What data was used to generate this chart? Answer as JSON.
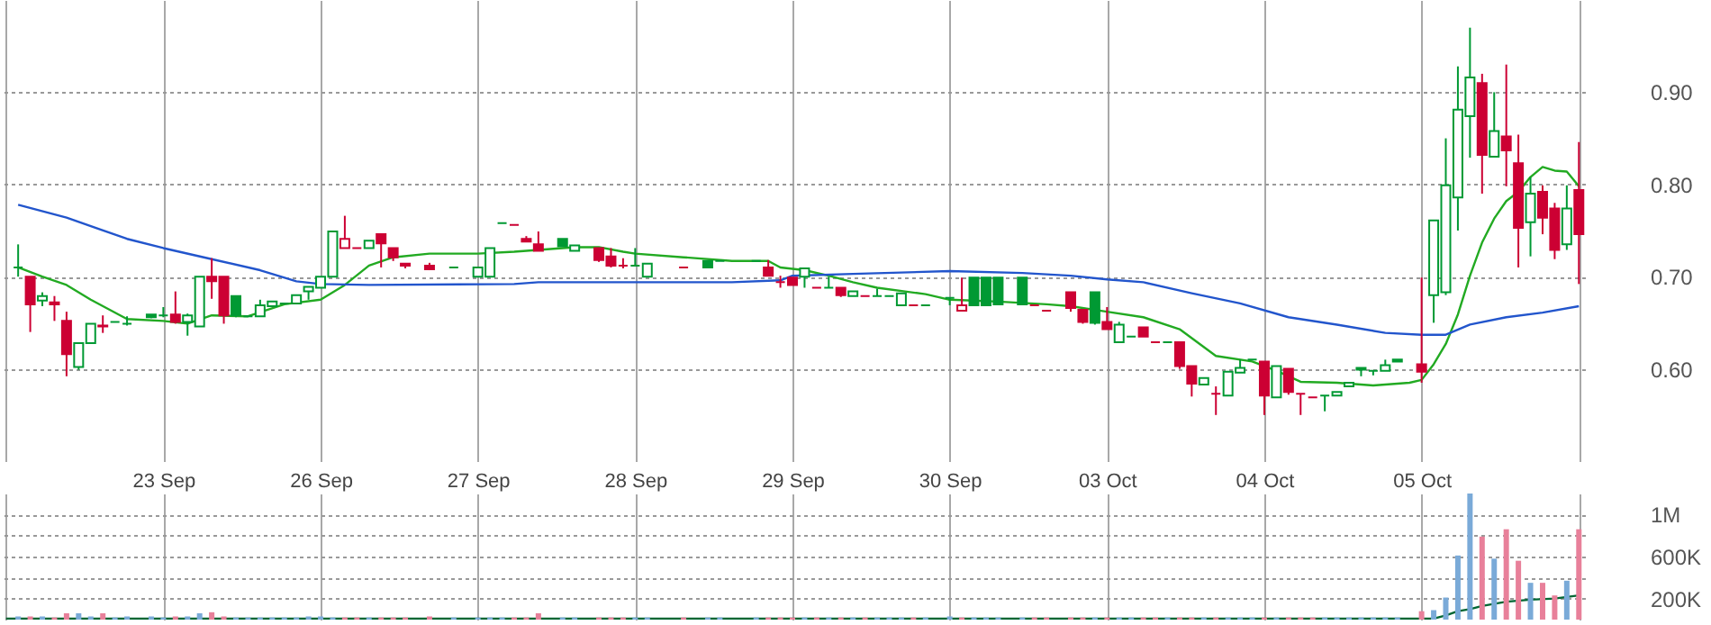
{
  "chart_data": [
    {
      "type": "candlestick",
      "categories": [
        null,
        null,
        null,
        null,
        null,
        null,
        null,
        null,
        null,
        null,
        null,
        null,
        null,
        "23 Sep",
        null,
        null,
        null,
        null,
        null,
        null,
        null,
        null,
        null,
        null,
        null,
        null,
        "26 Sep",
        null,
        null,
        null,
        null,
        null,
        null,
        null,
        null,
        null,
        null,
        null,
        null,
        "27 Sep",
        null,
        null,
        null,
        null,
        null,
        null,
        null,
        null,
        null,
        null,
        null,
        null,
        "28 Sep",
        null,
        null,
        null,
        null,
        null,
        null,
        null,
        null,
        null,
        null,
        null,
        null,
        "29 Sep",
        null,
        null,
        null,
        null,
        null,
        null,
        null,
        null,
        null,
        null,
        null,
        null,
        "30 Sep",
        null,
        null,
        null,
        null,
        null,
        null,
        null,
        null,
        null,
        null,
        null,
        null,
        "03 Oct",
        null,
        null,
        null,
        null,
        null,
        null,
        null,
        null,
        null,
        null,
        null,
        null,
        "04 Oct",
        null,
        null,
        null,
        null,
        null,
        null,
        null,
        null,
        null,
        null,
        null,
        null,
        "05 Oct",
        null,
        null,
        null,
        null,
        null,
        null,
        null,
        null,
        null,
        null,
        null,
        null,
        null
      ],
      "ohlc": [
        null,
        [
          0.71,
          0.735,
          0.7,
          0.71
        ],
        [
          0.7,
          0.7,
          0.64,
          0.67
        ],
        [
          0.674,
          0.683,
          0.668,
          0.679
        ],
        [
          0.672,
          0.679,
          0.652,
          0.67
        ],
        [
          0.652,
          0.662,
          0.592,
          0.616
        ],
        [
          0.602,
          0.628,
          0.599,
          0.628
        ],
        [
          0.628,
          0.649,
          0.628,
          0.649
        ],
        [
          0.647,
          0.658,
          0.639,
          0.646
        ],
        [
          0.651,
          0.651,
          0.651,
          0.651
        ],
        [
          0.649,
          0.657,
          0.647,
          0.649
        ],
        null,
        [
          0.659,
          0.659,
          0.655,
          0.656
        ],
        [
          0.658,
          0.667,
          0.656,
          0.658
        ],
        [
          0.659,
          0.684,
          0.649,
          0.651
        ],
        [
          0.651,
          0.66,
          0.636,
          0.658
        ],
        [
          0.646,
          0.7,
          0.646,
          0.7
        ],
        [
          0.7,
          0.72,
          0.676,
          0.695
        ],
        [
          0.7,
          0.7,
          0.649,
          0.658
        ],
        [
          0.679,
          0.679,
          0.656,
          0.658
        ],
        [
          0.657,
          0.657,
          0.657,
          0.657
        ],
        [
          0.657,
          0.675,
          0.657,
          0.669
        ],
        [
          0.668,
          0.673,
          0.668,
          0.673
        ],
        [
          0.671,
          0.671,
          0.671,
          0.671
        ],
        [
          0.671,
          0.68,
          0.671,
          0.68
        ],
        [
          0.684,
          0.689,
          0.675,
          0.689
        ],
        [
          0.688,
          0.7,
          0.688,
          0.7
        ],
        [
          0.7,
          0.749,
          0.7,
          0.749
        ],
        [
          0.731,
          0.766,
          0.731,
          0.741
        ],
        [
          0.731,
          0.731,
          0.731,
          0.731
        ],
        [
          0.731,
          0.739,
          0.731,
          0.739
        ],
        [
          0.746,
          0.746,
          0.71,
          0.736
        ],
        [
          0.731,
          0.731,
          0.717,
          0.721
        ],
        [
          0.714,
          0.714,
          0.709,
          0.712
        ],
        null,
        [
          0.712,
          0.715,
          0.707,
          0.708
        ],
        null,
        [
          0.71,
          0.71,
          0.71,
          0.71
        ],
        null,
        [
          0.7,
          0.71,
          0.7,
          0.71
        ],
        [
          0.7,
          0.731,
          0.7,
          0.731
        ],
        [
          0.758,
          0.758,
          0.758,
          0.758
        ],
        [
          0.756,
          0.756,
          0.756,
          0.756
        ],
        [
          0.741,
          0.744,
          0.738,
          0.738
        ],
        [
          0.735,
          0.749,
          0.728,
          0.728
        ],
        null,
        [
          0.741,
          0.741,
          0.733,
          0.733
        ],
        [
          0.728,
          0.734,
          0.728,
          0.734
        ],
        null,
        [
          0.731,
          0.731,
          0.716,
          0.718
        ],
        [
          0.722,
          0.731,
          0.71,
          0.712
        ],
        [
          0.712,
          0.72,
          0.709,
          0.712
        ],
        [
          0.712,
          0.731,
          0.712,
          0.712
        ],
        [
          0.7,
          0.714,
          0.7,
          0.714
        ],
        null,
        null,
        [
          0.71,
          0.71,
          0.71,
          0.71
        ],
        null,
        [
          0.717,
          0.717,
          0.71,
          0.71
        ],
        [
          0.717,
          0.717,
          0.717,
          0.717
        ],
        null,
        null,
        [
          0.717,
          0.717,
          0.717,
          0.717
        ],
        [
          0.71,
          0.718,
          0.701,
          0.701
        ],
        [
          0.694,
          0.701,
          0.688,
          0.694
        ],
        [
          0.699,
          0.699,
          0.691,
          0.691
        ],
        [
          0.7,
          0.709,
          0.688,
          0.709
        ],
        [
          0.688,
          0.688,
          0.688,
          0.688
        ],
        [
          0.688,
          0.7,
          0.688,
          0.688
        ],
        [
          0.688,
          0.688,
          0.678,
          0.68
        ],
        [
          0.679,
          0.684,
          0.679,
          0.684
        ],
        [
          0.679,
          0.679,
          0.679,
          0.679
        ],
        [
          0.679,
          0.687,
          0.679,
          0.679
        ],
        [
          0.679,
          0.679,
          0.679,
          0.679
        ],
        [
          0.669,
          0.682,
          0.669,
          0.682
        ],
        [
          0.669,
          0.669,
          0.669,
          0.669
        ],
        [
          0.669,
          0.669,
          0.669,
          0.669
        ],
        null,
        [
          0.677,
          0.677,
          0.669,
          0.677
        ],
        [
          0.663,
          0.699,
          0.663,
          0.669
        ],
        [
          0.699,
          0.699,
          0.668,
          0.669
        ],
        [
          0.699,
          0.699,
          0.669,
          0.669
        ],
        [
          0.699,
          0.699,
          0.67,
          0.67
        ],
        null,
        [
          0.699,
          0.699,
          0.67,
          0.67
        ],
        [
          0.669,
          0.669,
          0.669,
          0.669
        ],
        [
          0.663,
          0.663,
          0.663,
          0.663
        ],
        null,
        [
          0.683,
          0.683,
          0.662,
          0.666
        ],
        [
          0.664,
          0.664,
          0.649,
          0.651
        ],
        [
          0.683,
          0.683,
          0.648,
          0.65
        ],
        [
          0.651,
          0.667,
          0.643,
          0.643
        ],
        [
          0.629,
          0.651,
          0.629,
          0.648
        ],
        [
          0.635,
          0.635,
          0.635,
          0.635
        ],
        [
          0.645,
          0.645,
          0.635,
          0.635
        ],
        [
          0.629,
          0.629,
          0.629,
          0.629
        ],
        [
          0.629,
          0.629,
          0.629,
          0.629
        ],
        [
          0.629,
          0.629,
          0.6,
          0.603
        ],
        [
          0.603,
          0.603,
          0.57,
          0.584
        ],
        [
          0.583,
          0.59,
          0.583,
          0.59
        ],
        [
          0.573,
          0.581,
          0.55,
          0.573
        ],
        [
          0.571,
          0.597,
          0.571,
          0.597
        ],
        [
          0.596,
          0.61,
          0.596,
          0.601
        ],
        [
          0.61,
          0.61,
          0.61,
          0.61
        ],
        [
          0.608,
          0.608,
          0.55,
          0.571
        ],
        [
          0.569,
          0.603,
          0.569,
          0.603
        ],
        [
          0.6,
          0.6,
          0.572,
          0.575
        ],
        [
          0.573,
          0.573,
          0.55,
          0.573
        ],
        [
          0.569,
          0.569,
          0.569,
          0.569
        ],
        [
          0.571,
          0.571,
          0.554,
          0.571
        ],
        [
          0.571,
          0.575,
          0.571,
          0.575
        ],
        [
          0.581,
          0.585,
          0.581,
          0.585
        ],
        [
          0.601,
          0.601,
          0.592,
          0.599
        ],
        [
          0.598,
          0.598,
          0.593,
          0.598
        ],
        [
          0.598,
          0.61,
          0.598,
          0.604
        ],
        [
          0.61,
          0.61,
          0.608,
          0.608
        ],
        null,
        [
          0.605,
          0.699,
          0.585,
          0.597
        ],
        [
          0.68,
          0.761,
          0.65,
          0.761
        ],
        [
          0.683,
          0.85,
          0.68,
          0.799
        ],
        [
          0.786,
          0.928,
          0.75,
          0.881
        ],
        [
          0.874,
          0.97,
          0.829,
          0.916
        ],
        [
          0.91,
          0.92,
          0.79,
          0.832
        ],
        [
          0.83,
          0.9,
          0.83,
          0.858
        ],
        [
          0.852,
          0.93,
          0.798,
          0.837
        ],
        [
          0.823,
          0.854,
          0.71,
          0.753
        ],
        [
          0.759,
          0.808,
          0.722,
          0.79
        ],
        [
          0.792,
          0.799,
          0.746,
          0.764
        ],
        [
          0.774,
          0.78,
          0.719,
          0.729
        ],
        [
          0.735,
          0.799,
          0.729,
          0.774
        ],
        [
          0.794,
          0.846,
          0.692,
          0.746
        ]
      ],
      "colors": [
        null,
        "#009933",
        "#cc0033",
        "#009933",
        "#cc0033",
        "#cc0033",
        "#009933",
        "#009933",
        "#cc0033",
        "#009933",
        "#009933",
        null,
        "#009933",
        "#009933",
        "#cc0033",
        "#009933",
        "#009933",
        "#cc0033",
        "#cc0033",
        "#009933",
        "#009933",
        "#009933",
        "#009933",
        "#009933",
        "#009933",
        "#009933",
        "#009933",
        "#009933",
        "#cc0033",
        "#cc0033",
        "#009933",
        "#cc0033",
        "#cc0033",
        "#cc0033",
        null,
        "#cc0033",
        null,
        "#009933",
        null,
        "#009933",
        "#009933",
        "#009933",
        "#cc0033",
        "#cc0033",
        "#cc0033",
        null,
        "#009933",
        "#009933",
        null,
        "#cc0033",
        "#cc0033",
        "#cc0033",
        "#009933",
        "#009933",
        null,
        null,
        "#cc0033",
        null,
        "#009933",
        "#009933",
        null,
        null,
        "#009933",
        "#cc0033",
        "#cc0033",
        "#cc0033",
        "#009933",
        "#cc0033",
        "#009933",
        "#cc0033",
        "#009933",
        "#cc0033",
        "#009933",
        "#009933",
        "#009933",
        "#cc0033",
        "#009933",
        null,
        "#009933",
        "#cc0033",
        "#009933",
        "#009933",
        "#009933",
        null,
        "#009933",
        "#cc0033",
        "#cc0033",
        null,
        "#cc0033",
        "#cc0033",
        "#009933",
        "#cc0033",
        "#009933",
        "#009933",
        "#cc0033",
        "#cc0033",
        "#009933",
        "#cc0033",
        "#cc0033",
        "#009933",
        "#cc0033",
        "#009933",
        "#009933",
        "#009933",
        "#cc0033",
        "#009933",
        "#cc0033",
        "#cc0033",
        "#cc0033",
        "#009933",
        "#009933",
        "#009933",
        "#009933",
        "#009933",
        "#009933",
        "#009933",
        null,
        "#cc0033",
        "#009933",
        "#009933",
        "#009933",
        "#009933",
        "#cc0033",
        "#009933",
        "#cc0033",
        "#cc0033",
        "#009933",
        "#cc0033",
        "#cc0033",
        "#009933",
        "#cc0033"
      ],
      "series": [
        {
          "type": "line",
          "color": "#22aa22",
          "values": [
            null,
            0.71,
            null,
            0.7,
            null,
            0.691,
            null,
            0.675,
            null,
            null,
            0.654,
            null,
            null,
            0.652,
            null,
            0.649,
            null,
            0.658,
            null,
            null,
            0.657,
            null,
            null,
            0.67,
            null,
            null,
            0.675,
            null,
            0.691,
            null,
            0.712,
            null,
            0.721,
            null,
            null,
            0.725,
            null,
            null,
            null,
            0.725,
            null,
            null,
            0.727,
            null,
            null,
            0.73,
            null,
            0.732,
            null,
            0.732,
            null,
            0.727,
            0.725,
            null,
            null,
            null,
            0.721,
            null,
            null,
            null,
            0.717,
            null,
            null,
            0.717,
            0.71,
            null,
            0.707,
            null,
            0.701,
            null,
            0.694,
            null,
            0.688,
            null,
            null,
            null,
            0.681,
            null,
            0.675,
            null,
            null,
            null,
            0.673,
            null,
            null,
            null,
            0.67,
            null,
            0.668,
            null,
            null,
            0.662,
            null,
            null,
            0.656,
            null,
            null,
            0.643,
            null,
            null,
            0.614,
            null,
            null,
            0.608,
            null,
            0.598,
            null,
            0.586,
            null,
            null,
            0.585,
            null,
            null,
            0.582,
            null,
            null,
            0.585,
            0.588,
            0.605,
            0.627,
            0.659,
            0.701,
            0.737,
            0.763,
            0.782,
            0.792,
            0.808,
            0.819,
            0.815,
            0.814,
            0.798
          ]
        },
        {
          "type": "line",
          "color": "#2255cc",
          "values": [
            null,
            0.778,
            null,
            null,
            null,
            0.764,
            null,
            null,
            null,
            null,
            0.741,
            null,
            null,
            0.731,
            null,
            null,
            null,
            0.719,
            null,
            null,
            null,
            0.707,
            null,
            null,
            0.695,
            null,
            0.692,
            null,
            null,
            null,
            0.691,
            null,
            null,
            null,
            null,
            null,
            null,
            null,
            null,
            null,
            null,
            null,
            0.692,
            null,
            0.694,
            null,
            null,
            null,
            null,
            null,
            null,
            null,
            null,
            null,
            null,
            null,
            null,
            null,
            null,
            null,
            0.694,
            null,
            null,
            null,
            0.696,
            0.701,
            null,
            null,
            null,
            null,
            0.703,
            null,
            null,
            null,
            null,
            null,
            null,
            null,
            0.706,
            null,
            null,
            null,
            null,
            null,
            0.704,
            null,
            null,
            null,
            0.701,
            null,
            null,
            0.697,
            null,
            null,
            0.694,
            null,
            null,
            null,
            0.682,
            null,
            null,
            null,
            0.671,
            null,
            null,
            null,
            0.656,
            null,
            null,
            null,
            0.648,
            null,
            null,
            null,
            0.639,
            null,
            null,
            0.637,
            null,
            0.637,
            null,
            0.648,
            null,
            null,
            0.656,
            null,
            null,
            0.661,
            null,
            null,
            0.668
          ]
        }
      ],
      "ylim": [
        0.5,
        1.0
      ],
      "yticks": [
        {
          "value": 0.6,
          "label": "0.60"
        },
        {
          "value": 0.7,
          "label": "0.70"
        },
        {
          "value": 0.8,
          "label": "0.80"
        },
        {
          "value": 0.9,
          "label": "0.90"
        }
      ],
      "grid": true
    },
    {
      "type": "bar",
      "categories": [
        null,
        null,
        null,
        null,
        null,
        null,
        null,
        null,
        null,
        null,
        null,
        null,
        null,
        null,
        null,
        null,
        null,
        null,
        null,
        null,
        null,
        null,
        null,
        null,
        null,
        null,
        null,
        null,
        null,
        null,
        null,
        null,
        null,
        null,
        null,
        null,
        null,
        null,
        null,
        null,
        null,
        null,
        null,
        null,
        null,
        null,
        null,
        null,
        null,
        null,
        null,
        null,
        null,
        null,
        null,
        null,
        null,
        null,
        null,
        null,
        null,
        null,
        null,
        null,
        null,
        null,
        null,
        null,
        null,
        null,
        null,
        null,
        null,
        null,
        null,
        null,
        null,
        null,
        null,
        null,
        null,
        null,
        null,
        null,
        null,
        null,
        null,
        null,
        null,
        null,
        null,
        null,
        null,
        null,
        null,
        null,
        null,
        null,
        null,
        null,
        null,
        null,
        null,
        null,
        null,
        null,
        null,
        null,
        null,
        null,
        null,
        null,
        null,
        null,
        null,
        null,
        null,
        null,
        null,
        null,
        null,
        null,
        null,
        null,
        null,
        null,
        null,
        null,
        null,
        null,
        null
      ],
      "series": [
        {
          "values": [
            null,
            30000,
            30000,
            30000,
            20000,
            60000,
            60000,
            30000,
            60000,
            20000,
            30000,
            null,
            30000,
            20000,
            30000,
            30000,
            60000,
            70000,
            30000,
            20000,
            20000,
            20000,
            20000,
            20000,
            20000,
            30000,
            30000,
            20000,
            20000,
            20000,
            20000,
            20000,
            20000,
            20000,
            null,
            30000,
            null,
            20000,
            null,
            20000,
            20000,
            20000,
            20000,
            20000,
            60000,
            null,
            20000,
            20000,
            null,
            20000,
            20000,
            20000,
            20000,
            20000,
            null,
            null,
            20000,
            null,
            20000,
            20000,
            null,
            null,
            20000,
            20000,
            20000,
            20000,
            20000,
            20000,
            20000,
            20000,
            20000,
            20000,
            20000,
            20000,
            20000,
            20000,
            20000,
            null,
            30000,
            20000,
            20000,
            20000,
            20000,
            null,
            20000,
            20000,
            20000,
            null,
            20000,
            20000,
            20000,
            20000,
            20000,
            20000,
            20000,
            20000,
            20000,
            20000,
            20000,
            20000,
            20000,
            20000,
            20000,
            20000,
            20000,
            20000,
            20000,
            20000,
            20000,
            20000,
            20000,
            20000,
            20000,
            20000,
            20000,
            20000,
            null,
            80000,
            90000,
            210000,
            610000,
            1200000,
            790000,
            580000,
            860000,
            560000,
            350000,
            350000,
            230000,
            370000,
            860000
          ],
          "colors": [
            null,
            "#7aaad8",
            "#e8809a",
            "#7aaad8",
            "#e8809a",
            "#e8809a",
            "#7aaad8",
            "#7aaad8",
            "#e8809a",
            "#7aaad8",
            "#7aaad8",
            null,
            "#7aaad8",
            "#7aaad8",
            "#e8809a",
            "#7aaad8",
            "#7aaad8",
            "#e8809a",
            "#e8809a",
            "#7aaad8",
            "#7aaad8",
            "#7aaad8",
            "#7aaad8",
            "#7aaad8",
            "#7aaad8",
            "#7aaad8",
            "#7aaad8",
            "#7aaad8",
            "#e8809a",
            "#e8809a",
            "#7aaad8",
            "#e8809a",
            "#e8809a",
            "#e8809a",
            null,
            "#e8809a",
            null,
            "#7aaad8",
            null,
            "#7aaad8",
            "#7aaad8",
            "#7aaad8",
            "#e8809a",
            "#e8809a",
            "#e8809a",
            null,
            "#7aaad8",
            "#7aaad8",
            null,
            "#e8809a",
            "#e8809a",
            "#e8809a",
            "#7aaad8",
            "#7aaad8",
            null,
            null,
            "#e8809a",
            null,
            "#7aaad8",
            "#7aaad8",
            null,
            null,
            "#7aaad8",
            "#e8809a",
            "#e8809a",
            "#e8809a",
            "#7aaad8",
            "#e8809a",
            "#7aaad8",
            "#e8809a",
            "#7aaad8",
            "#e8809a",
            "#7aaad8",
            "#7aaad8",
            "#7aaad8",
            "#e8809a",
            "#7aaad8",
            null,
            "#7aaad8",
            "#e8809a",
            "#7aaad8",
            "#7aaad8",
            "#7aaad8",
            null,
            "#7aaad8",
            "#e8809a",
            "#e8809a",
            null,
            "#e8809a",
            "#e8809a",
            "#7aaad8",
            "#e8809a",
            "#7aaad8",
            "#7aaad8",
            "#e8809a",
            "#e8809a",
            "#7aaad8",
            "#e8809a",
            "#e8809a",
            "#7aaad8",
            "#e8809a",
            "#7aaad8",
            "#7aaad8",
            "#7aaad8",
            "#e8809a",
            "#7aaad8",
            "#e8809a",
            "#e8809a",
            "#e8809a",
            "#7aaad8",
            "#7aaad8",
            "#7aaad8",
            "#7aaad8",
            "#7aaad8",
            "#7aaad8",
            "#7aaad8",
            null,
            "#e8809a",
            "#7aaad8",
            "#7aaad8",
            "#7aaad8",
            "#7aaad8",
            "#e8809a",
            "#7aaad8",
            "#e8809a",
            "#e8809a",
            "#7aaad8",
            "#e8809a",
            "#e8809a",
            "#7aaad8",
            "#e8809a"
          ]
        },
        {
          "type": "line",
          "color": "#006633",
          "values": [
            10000,
            null,
            null,
            null,
            null,
            null,
            null,
            null,
            null,
            null,
            null,
            null,
            null,
            null,
            null,
            null,
            null,
            null,
            null,
            null,
            null,
            null,
            null,
            null,
            null,
            null,
            null,
            null,
            null,
            null,
            null,
            null,
            null,
            null,
            null,
            null,
            null,
            null,
            null,
            null,
            null,
            null,
            null,
            null,
            null,
            null,
            null,
            null,
            null,
            null,
            null,
            null,
            null,
            null,
            null,
            null,
            null,
            null,
            null,
            null,
            null,
            null,
            null,
            null,
            null,
            null,
            null,
            null,
            null,
            null,
            null,
            null,
            null,
            null,
            null,
            null,
            null,
            null,
            null,
            null,
            null,
            null,
            null,
            null,
            null,
            null,
            null,
            null,
            null,
            null,
            null,
            null,
            null,
            null,
            null,
            null,
            null,
            null,
            null,
            null,
            null,
            null,
            null,
            null,
            null,
            null,
            null,
            null,
            null,
            null,
            null,
            null,
            null,
            null,
            null,
            null,
            null,
            null,
            10000,
            40000,
            80000,
            100000,
            130000,
            null,
            170000,
            null,
            190000,
            null,
            200000,
            null,
            230000
          ]
        }
      ],
      "ylim": [
        0,
        1200000
      ],
      "yticks": [
        {
          "value": 200000,
          "label": "200K"
        },
        {
          "value": 400000,
          "label": null
        },
        {
          "value": 600000,
          "label": "600K"
        },
        {
          "value": 800000,
          "label": null
        },
        {
          "value": 1000000,
          "label": "1M"
        }
      ],
      "grid": true
    }
  ]
}
